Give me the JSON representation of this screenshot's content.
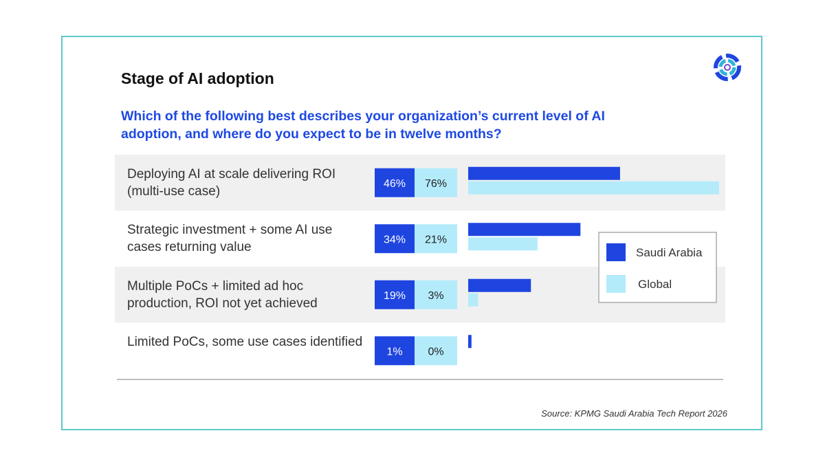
{
  "chart_data": {
    "type": "bar",
    "title": "Stage of AI adoption",
    "subtitle": "Which of the following best describes your organization’s current level of AI adoption, and where do you expect to be in twelve months?",
    "categories": [
      "Deploying AI at scale delivering ROI (multi-use case)",
      "Strategic investment + some AI use cases returning value",
      "Multiple PoCs + limited ad hoc production, ROI not yet achieved",
      "Limited PoCs, some use cases identified"
    ],
    "series": [
      {
        "name": "Saudi Arabia",
        "color": "#1f45e0",
        "values": [
          46,
          34,
          19,
          1
        ],
        "value_labels": [
          "46%",
          "34%",
          "19%",
          "1%"
        ]
      },
      {
        "name": "Global",
        "color": "#b4ebfb",
        "values": [
          76,
          21,
          3,
          0
        ],
        "value_labels": [
          "76%",
          "21%",
          "3%",
          "0%"
        ]
      }
    ],
    "source": "Source: KPMG Saudi Arabia Tech Report 2026"
  }
}
